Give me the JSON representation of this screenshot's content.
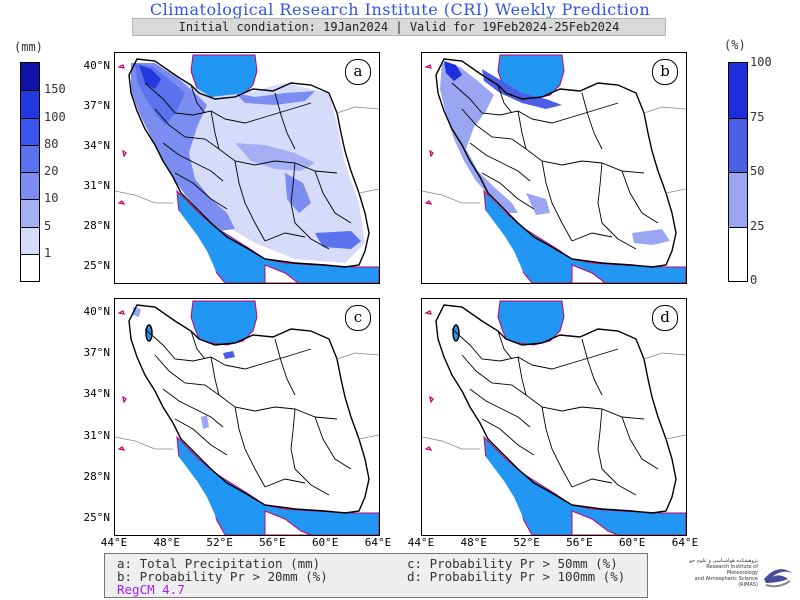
{
  "header": {
    "title": "Climatological Research Institute (CRI) Weekly Prediction",
    "subtitle": "Initial condiation: 19Jan2024 | Valid for 19Feb2024-25Feb2024"
  },
  "left_colorbar": {
    "unit": "(mm)",
    "levels": [
      "150",
      "100",
      "80",
      "20",
      "10",
      "5",
      "1"
    ],
    "colors": [
      "#1212a8",
      "#2438e0",
      "#3a55ec",
      "#5a72ee",
      "#7b8df0",
      "#a5b0f4",
      "#d6dbfa",
      "#ffffff"
    ]
  },
  "right_colorbar": {
    "unit": "(%)",
    "levels": [
      "100",
      "75",
      "50",
      "25",
      "0"
    ],
    "colors": [
      "#1d2fdd",
      "#4a5fe6",
      "#9aa6f1",
      "#ffffff"
    ]
  },
  "panels": [
    {
      "id": "a"
    },
    {
      "id": "b"
    },
    {
      "id": "c"
    },
    {
      "id": "d"
    }
  ],
  "latitudes": [
    "40°N",
    "37°N",
    "34°N",
    "31°N",
    "28°N",
    "25°N"
  ],
  "longitudes": [
    "44°E",
    "48°E",
    "52°E",
    "56°E",
    "60°E",
    "64°E"
  ],
  "legend": {
    "line_a": "a: Total Precipitation (mm)",
    "line_b": "b: Probability Pr > 20mm (%)",
    "line_c": "c: Probability Pr > 50mm (%)",
    "line_d": "d: Probability Pr > 100mm (%)",
    "model": "RegCM 4.7"
  },
  "logo": {
    "line1": "پژوهشکده هواشناسی و علوم جو",
    "line2": "Research Institute of Meteorology",
    "line3": "and Atmospheric Science (RIMAS)"
  },
  "colors": {
    "sea": "#2196f3",
    "title": "#2f55e8",
    "model_label": "#a020f0",
    "coast": "#c8006e"
  }
}
